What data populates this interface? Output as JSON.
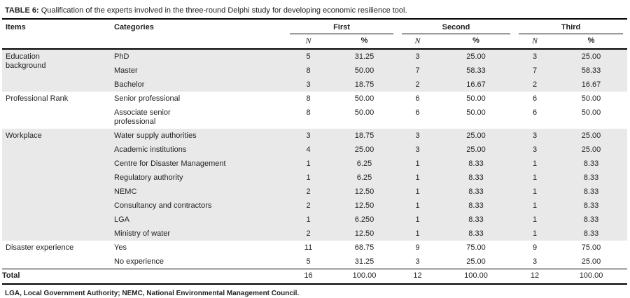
{
  "title": {
    "label": "TABLE 6:",
    "text": "Qualification of the experts involved in the three-round Delphi study for developing economic resilience tool."
  },
  "table": {
    "col_items": "Items",
    "col_categories": "Categories",
    "groups": [
      {
        "label": "First",
        "n": "N",
        "pct": "%"
      },
      {
        "label": "Second",
        "n": "N",
        "pct": "%"
      },
      {
        "label": "Third",
        "n": "N",
        "pct": "%"
      }
    ],
    "sections": [
      {
        "item": "Education\nbackground",
        "shaded": true,
        "rows": [
          {
            "category": "PhD",
            "values": [
              "5",
              "31.25",
              "3",
              "25.00",
              "3",
              "25.00"
            ]
          },
          {
            "category": "Master",
            "values": [
              "8",
              "50.00",
              "7",
              "58.33",
              "7",
              "58.33"
            ]
          },
          {
            "category": "Bachelor",
            "values": [
              "3",
              "18.75",
              "2",
              "16.67",
              "2",
              "16.67"
            ]
          }
        ]
      },
      {
        "item": "Professional Rank",
        "shaded": false,
        "rows": [
          {
            "category": "Senior professional",
            "values": [
              "8",
              "50.00",
              "6",
              "50.00",
              "6",
              "50.00"
            ]
          },
          {
            "category": "Associate senior\nprofessional",
            "values": [
              "8",
              "50.00",
              "6",
              "50.00",
              "6",
              "50.00"
            ]
          }
        ]
      },
      {
        "item": "Workplace",
        "shaded": true,
        "rows": [
          {
            "category": "Water supply authorities",
            "values": [
              "3",
              "18.75",
              "3",
              "25.00",
              "3",
              "25.00"
            ]
          },
          {
            "category": "Academic institutions",
            "values": [
              "4",
              "25.00",
              "3",
              "25.00",
              "3",
              "25.00"
            ]
          },
          {
            "category": "Centre for Disaster Management",
            "values": [
              "1",
              "6.25",
              "1",
              "8.33",
              "1",
              "8.33"
            ]
          },
          {
            "category": "Regulatory authority",
            "values": [
              "1",
              "6.25",
              "1",
              "8.33",
              "1",
              "8.33"
            ]
          },
          {
            "category": "NEMC",
            "values": [
              "2",
              "12.50",
              "1",
              "8.33",
              "1",
              "8.33"
            ]
          },
          {
            "category": "Consultancy and contractors",
            "values": [
              "2",
              "12.50",
              "1",
              "8.33",
              "1",
              "8.33"
            ]
          },
          {
            "category": "LGA",
            "values": [
              "1",
              "6.250",
              "1",
              "8.33",
              "1",
              "8.33"
            ]
          },
          {
            "category": "Ministry of water",
            "values": [
              "2",
              "12.50",
              "1",
              "8.33",
              "1",
              "8.33"
            ]
          }
        ]
      },
      {
        "item": "Disaster experience",
        "shaded": false,
        "rows": [
          {
            "category": "Yes",
            "values": [
              "11",
              "68.75",
              "9",
              "75.00",
              "9",
              "75.00"
            ]
          },
          {
            "category": "No experience",
            "values": [
              "5",
              "31.25",
              "3",
              "25.00",
              "3",
              "25.00"
            ]
          }
        ]
      }
    ],
    "total": {
      "label": "Total",
      "values": [
        "16",
        "100.00",
        "12",
        "100.00",
        "12",
        "100.00"
      ]
    }
  },
  "footnote": "LGA, Local Government Authority; NEMC, National Environmental Management Council.",
  "colors": {
    "shaded_row": "#e9e9e9",
    "border": "#000000",
    "text": "#1f1f1f"
  }
}
